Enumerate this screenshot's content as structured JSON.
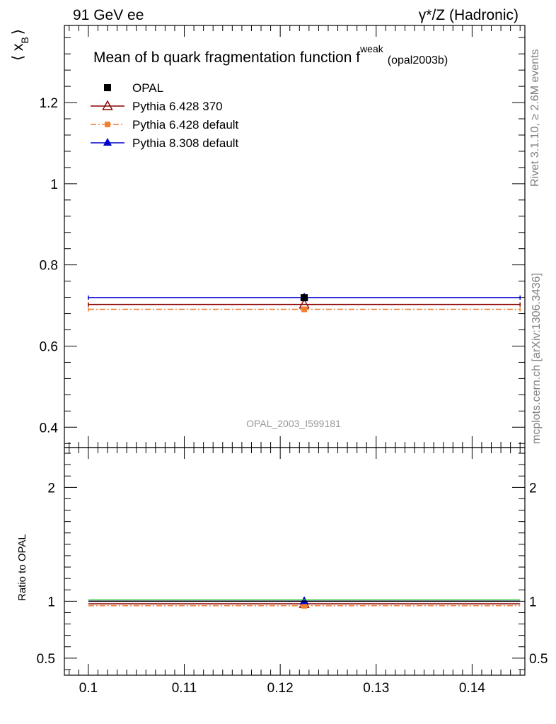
{
  "header": {
    "left": "91 GeV ee",
    "right": "γ*/Z (Hadronic)"
  },
  "side_text": {
    "rivet": "Rivet 3.1.10, ≥ 2.6M events",
    "mcplots": "mcplots.cern.ch [arXiv:1306.3436]"
  },
  "chart_data": {
    "type": "scatter",
    "title_main": "Mean of b quark fragmentation function f",
    "title_sup": "weak",
    "title_sub": "(opal2003b)",
    "watermark": "OPAL_2003_I599181",
    "ylabel_main": "⟨ x",
    "ylabel_sub": "B",
    "ylabel_close": "⟩",
    "ylabel_ratio": "Ratio to OPAL",
    "xlim": [
      0.0975,
      0.1455
    ],
    "ylim": [
      0.35,
      1.39
    ],
    "ratio_ylim": [
      0.35,
      2.35
    ],
    "x_ticks": [
      0.1,
      0.11,
      0.12,
      0.13,
      0.14
    ],
    "x_tick_labels": [
      "0.1",
      "0.11",
      "0.12",
      "0.13",
      "0.14"
    ],
    "y_ticks": [
      0.4,
      0.6,
      0.8,
      1.0,
      1.2
    ],
    "y_tick_labels": [
      "0.4",
      "0.6",
      "0.8",
      "1",
      "1.2"
    ],
    "ratio_ticks": [
      0.5,
      1,
      2
    ],
    "ratio_tick_labels": [
      "0.5",
      "1",
      "2"
    ],
    "x_point": 0.1225,
    "x_range": [
      0.1,
      0.145
    ],
    "series": [
      {
        "name": "OPAL",
        "value": 0.7191,
        "ratio": 1.0,
        "color": "#000000",
        "marker": "square",
        "dash": ""
      },
      {
        "name": "Pythia 6.428 370",
        "value": 0.7025,
        "ratio": 0.977,
        "color": "#8b0000",
        "marker": "triangle-open",
        "dash": ""
      },
      {
        "name": "Pythia 6.428 default",
        "value": 0.6905,
        "ratio": 0.96,
        "color": "#f07f2e",
        "marker": "square-small",
        "dash": "8,3,2,3"
      },
      {
        "name": "Pythia 8.308 default",
        "value": 0.7195,
        "ratio": 1.0006,
        "color": "#0000cc",
        "marker": "triangle",
        "dash": ""
      }
    ]
  }
}
